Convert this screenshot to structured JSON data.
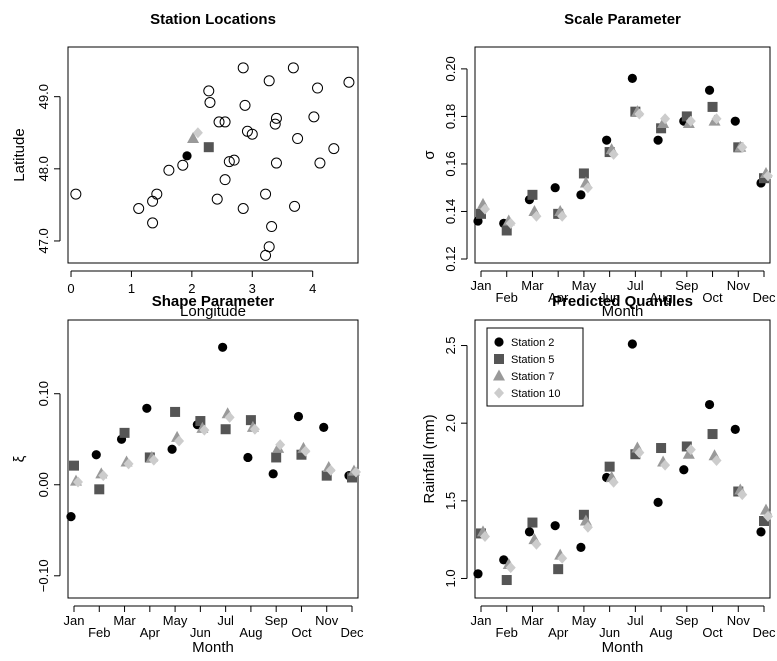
{
  "figure": {
    "series_colors": {
      "Station 2": "#000000",
      "Station 5": "#555555",
      "Station 7": "#999999",
      "Station 10": "#cccccc"
    }
  },
  "chart_data": [
    {
      "id": "station-locations",
      "type": "scatter",
      "title": "Station Locations",
      "xlabel": "Longitude",
      "ylabel": "Latitude",
      "xlim": [
        -0.05,
        4.75
      ],
      "ylim": [
        46.75,
        49.55
      ],
      "xticks": [
        0,
        1,
        2,
        3,
        4
      ],
      "xtick_labels": [
        "0",
        "1",
        "2",
        "3",
        "4"
      ],
      "yticks": [
        47.0,
        48.0,
        49.0
      ],
      "ytick_labels": [
        "47.0",
        "48.0",
        "49.0"
      ],
      "series": [
        {
          "marker": "circle-open",
          "points": [
            [
              0.08,
              47.65
            ],
            [
              1.12,
              47.45
            ],
            [
              1.35,
              47.55
            ],
            [
              1.42,
              47.65
            ],
            [
              1.35,
              47.25
            ],
            [
              1.62,
              47.98
            ],
            [
              1.85,
              48.05
            ],
            [
              2.28,
              49.08
            ],
            [
              2.3,
              48.92
            ],
            [
              2.45,
              48.65
            ],
            [
              2.55,
              48.65
            ],
            [
              2.62,
              48.1
            ],
            [
              2.7,
              48.12
            ],
            [
              2.42,
              47.58
            ],
            [
              2.55,
              47.85
            ],
            [
              2.85,
              47.45
            ],
            [
              2.85,
              49.4
            ],
            [
              2.88,
              48.88
            ],
            [
              2.92,
              48.52
            ],
            [
              3.0,
              48.48
            ],
            [
              3.22,
              47.65
            ],
            [
              3.28,
              49.22
            ],
            [
              3.32,
              47.2
            ],
            [
              3.28,
              46.92
            ],
            [
              3.22,
              46.8
            ],
            [
              3.38,
              48.62
            ],
            [
              3.4,
              48.7
            ],
            [
              3.4,
              48.08
            ],
            [
              3.68,
              49.4
            ],
            [
              3.75,
              48.42
            ],
            [
              3.7,
              47.48
            ],
            [
              4.02,
              48.72
            ],
            [
              4.08,
              49.12
            ],
            [
              4.12,
              48.08
            ],
            [
              4.35,
              48.28
            ],
            [
              4.6,
              49.2
            ]
          ]
        },
        {
          "name": "Station 2",
          "marker": "circle",
          "points": [
            [
              1.92,
              48.18
            ]
          ]
        },
        {
          "name": "Station 5",
          "marker": "square",
          "points": [
            [
              2.28,
              48.3
            ]
          ]
        },
        {
          "name": "Station 7",
          "marker": "triangle",
          "points": [
            [
              2.02,
              48.42
            ]
          ]
        },
        {
          "name": "Station 10",
          "marker": "diamond",
          "points": [
            [
              2.1,
              48.5
            ]
          ]
        }
      ]
    },
    {
      "id": "scale-parameter",
      "type": "scatter",
      "title": "Scale Parameter",
      "xlabel": "Month",
      "ylabel": "σ",
      "categories": [
        "Jan",
        "Feb",
        "Mar",
        "Apr",
        "May",
        "Jun",
        "Jul",
        "Aug",
        "Sep",
        "Oct",
        "Nov",
        "Dec"
      ],
      "ylim": [
        0.12,
        0.205
      ],
      "yticks": [
        0.12,
        0.14,
        0.16,
        0.18,
        0.2
      ],
      "ytick_labels": [
        "0.12",
        "0.14",
        "0.16",
        "0.18",
        "0.20"
      ],
      "series": [
        {
          "name": "Station 2",
          "marker": "circle",
          "values": [
            0.136,
            0.135,
            0.145,
            0.15,
            0.147,
            0.17,
            0.196,
            0.17,
            0.178,
            0.191,
            0.178,
            0.152
          ]
        },
        {
          "name": "Station 5",
          "marker": "square",
          "values": [
            0.139,
            0.132,
            0.147,
            0.139,
            0.156,
            0.165,
            0.182,
            0.175,
            0.18,
            0.184,
            0.167,
            0.154
          ]
        },
        {
          "name": "Station 7",
          "marker": "triangle",
          "values": [
            0.143,
            0.136,
            0.14,
            0.14,
            0.152,
            0.166,
            0.182,
            0.177,
            0.177,
            0.178,
            0.167,
            0.156
          ]
        },
        {
          "name": "Station 10",
          "marker": "diamond",
          "values": [
            0.141,
            0.135,
            0.138,
            0.138,
            0.15,
            0.164,
            0.181,
            0.179,
            0.178,
            0.179,
            0.167,
            0.155
          ]
        }
      ]
    },
    {
      "id": "shape-parameter",
      "type": "scatter",
      "title": "Shape Parameter",
      "xlabel": "Month",
      "ylabel": "ξ",
      "categories": [
        "Jan",
        "Feb",
        "Mar",
        "Apr",
        "May",
        "Jun",
        "Jul",
        "Aug",
        "Sep",
        "Oct",
        "Nov",
        "Dec"
      ],
      "ylim": [
        -0.12,
        0.17
      ],
      "yticks": [
        -0.1,
        0.0,
        0.1
      ],
      "ytick_labels": [
        "−0.10",
        "0.00",
        "0.10"
      ],
      "series": [
        {
          "name": "Station 2",
          "marker": "circle",
          "values": [
            -0.035,
            0.033,
            0.05,
            0.084,
            0.039,
            0.066,
            0.151,
            0.03,
            0.012,
            0.075,
            0.063,
            0.01
          ]
        },
        {
          "name": "Station 5",
          "marker": "square",
          "values": [
            0.021,
            -0.005,
            0.057,
            0.03,
            0.08,
            0.07,
            0.061,
            0.071,
            0.03,
            0.033,
            0.01,
            0.008
          ]
        },
        {
          "name": "Station 7",
          "marker": "triangle",
          "values": [
            0.004,
            0.012,
            0.025,
            0.03,
            0.052,
            0.062,
            0.078,
            0.063,
            0.04,
            0.04,
            0.019,
            0.015
          ]
        },
        {
          "name": "Station 10",
          "marker": "diamond",
          "values": [
            0.003,
            0.01,
            0.023,
            0.027,
            0.048,
            0.06,
            0.074,
            0.061,
            0.044,
            0.037,
            0.016,
            0.014
          ]
        }
      ]
    },
    {
      "id": "predicted-quantiles",
      "type": "scatter",
      "title": "Predicted Quantiles",
      "xlabel": "Month",
      "ylabel": "Rainfall (mm)",
      "categories": [
        "Jan",
        "Feb",
        "Mar",
        "Apr",
        "May",
        "Jun",
        "Jul",
        "Aug",
        "Sep",
        "Oct",
        "Nov",
        "Dec"
      ],
      "ylim": [
        0.9,
        2.6
      ],
      "yticks": [
        1.0,
        1.5,
        2.0,
        2.5
      ],
      "ytick_labels": [
        "1.0",
        "1.5",
        "2.0",
        "2.5"
      ],
      "legend": {
        "position": "top-left",
        "entries": [
          "Station 2",
          "Station 5",
          "Station 7",
          "Station 10"
        ]
      },
      "series": [
        {
          "name": "Station 2",
          "marker": "circle",
          "values": [
            1.03,
            1.12,
            1.3,
            1.34,
            1.2,
            1.65,
            2.51,
            1.49,
            1.7,
            2.12,
            1.96,
            1.3
          ]
        },
        {
          "name": "Station 5",
          "marker": "square",
          "values": [
            1.29,
            0.99,
            1.36,
            1.06,
            1.41,
            1.72,
            1.8,
            1.84,
            1.85,
            1.93,
            1.56,
            1.37
          ]
        },
        {
          "name": "Station 7",
          "marker": "triangle",
          "values": [
            1.3,
            1.09,
            1.25,
            1.15,
            1.37,
            1.65,
            1.84,
            1.75,
            1.8,
            1.79,
            1.57,
            1.44
          ]
        },
        {
          "name": "Station 10",
          "marker": "diamond",
          "values": [
            1.27,
            1.07,
            1.22,
            1.13,
            1.33,
            1.62,
            1.81,
            1.73,
            1.83,
            1.76,
            1.54,
            1.4
          ]
        }
      ]
    }
  ]
}
